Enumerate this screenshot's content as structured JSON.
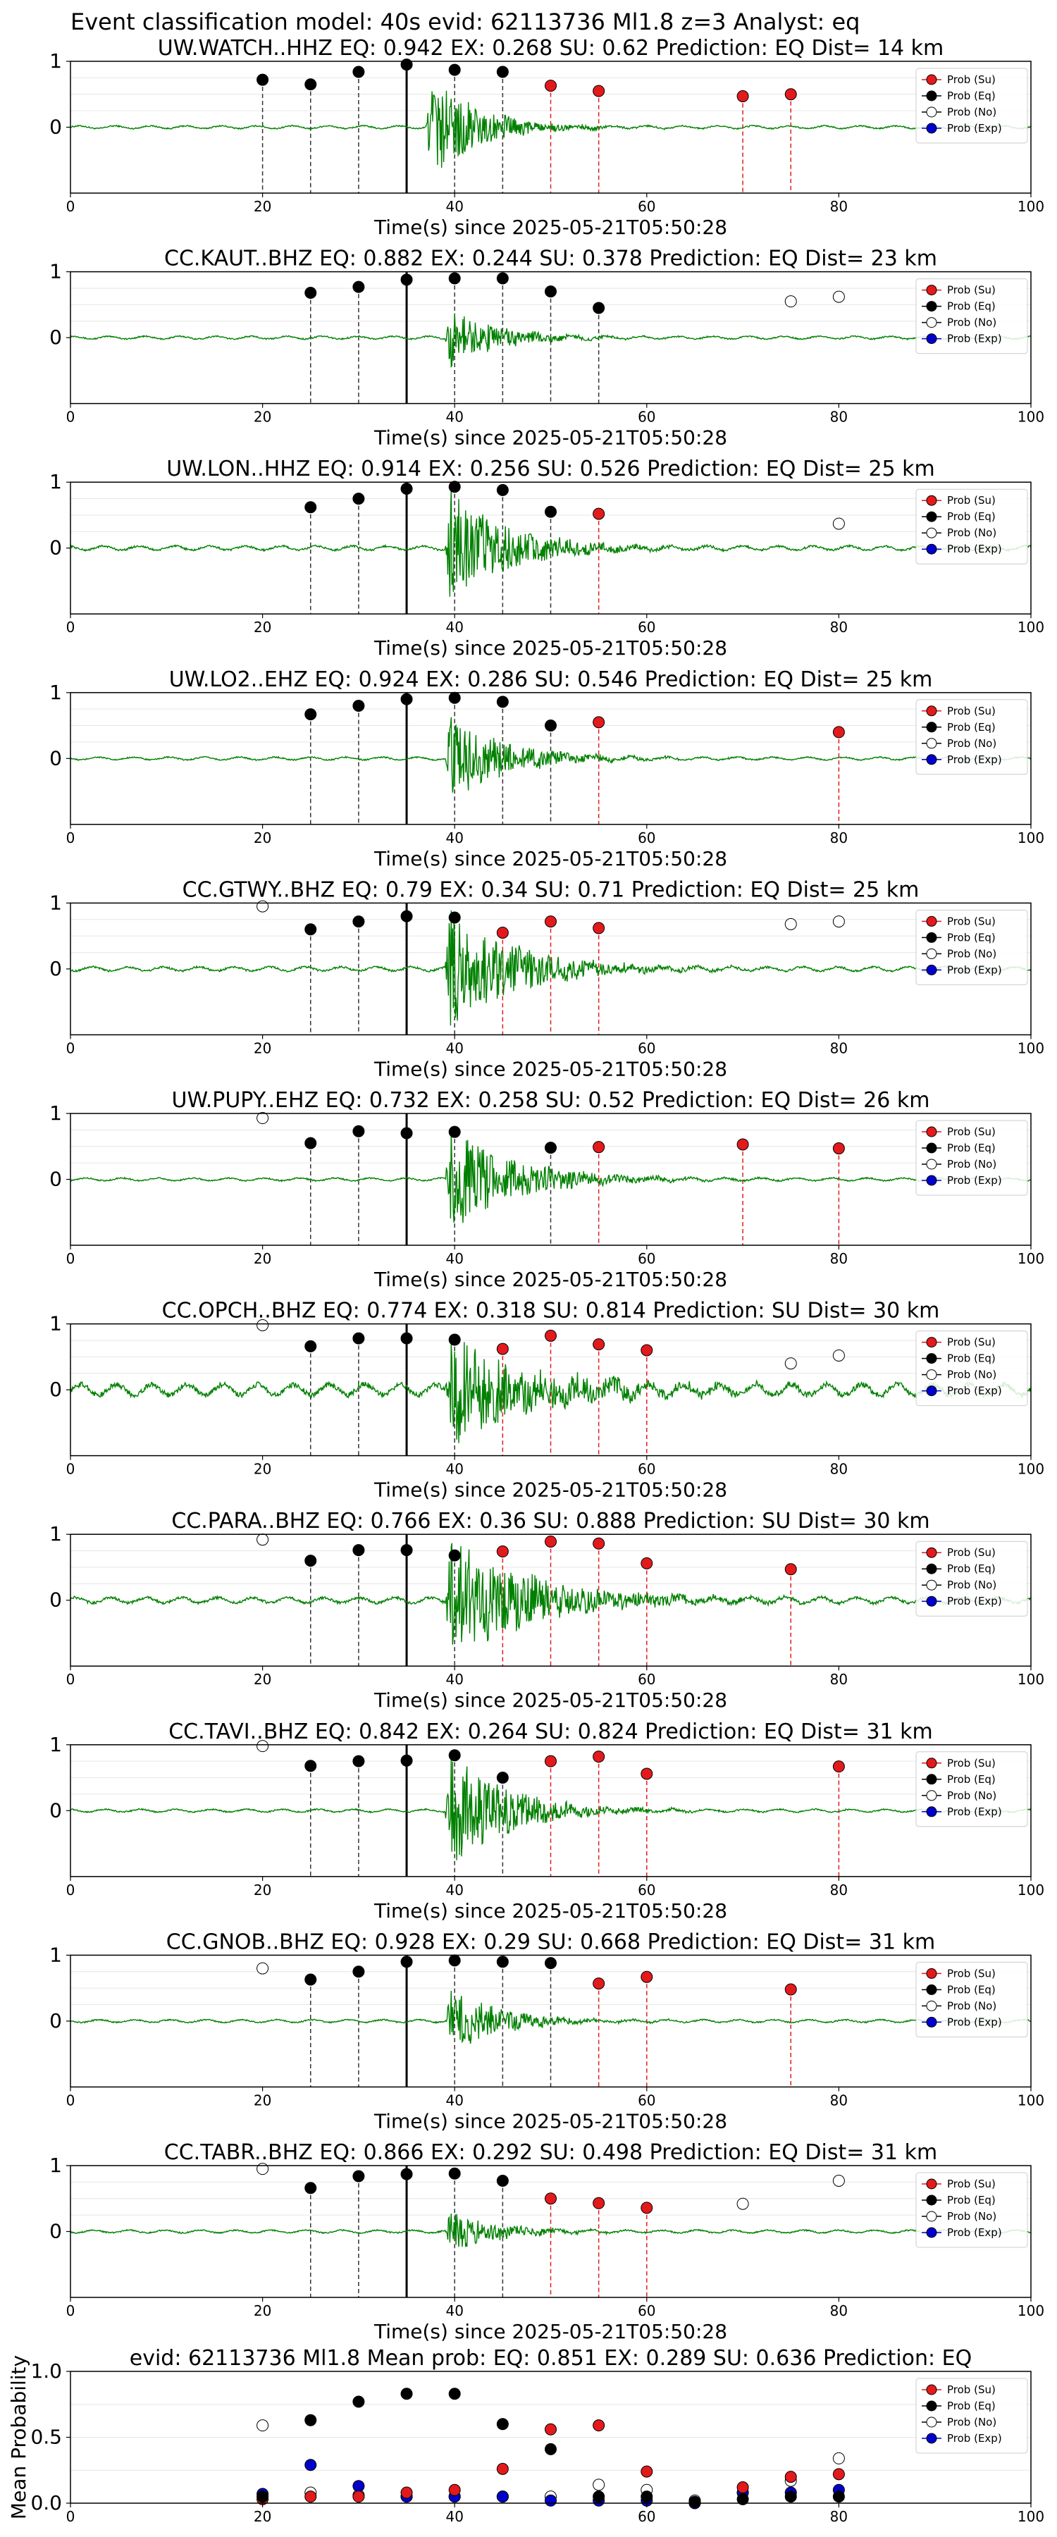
{
  "figure_title": "Event classification model: 40s evid: 62113736 Ml1.8 z=3 Analyst: eq",
  "legend_entries": [
    "Prob (Su)",
    "Prob (Eq)",
    "Prob (No)",
    "Prob (Exp)"
  ],
  "colors": {
    "trace": "#008000",
    "su": "#e31a1c",
    "eq": "#000000",
    "no": "#ffffff",
    "exp": "#0000cc",
    "su_line": "#e31a1c",
    "eq_line": "#333333"
  },
  "chart_data": [
    {
      "type": "line",
      "title": "UW.WATCH..HHZ   EQ: 0.942  EX: 0.268  SU: 0.62   Prediction: EQ    Dist= 14 km",
      "xlabel": "Time(s) since 2025-05-21T05:50:28",
      "xlim": [
        0,
        100
      ],
      "ylim": [
        -1,
        1
      ],
      "xticks": [
        0,
        20,
        40,
        60,
        80,
        100
      ],
      "yticks": [
        0,
        1
      ],
      "pick_time": 35,
      "signal": {
        "start": 37,
        "amp": 0.9,
        "decay": 5,
        "noise": 0.02
      },
      "eq_points": [
        [
          20,
          0.72
        ],
        [
          25,
          0.65
        ],
        [
          30,
          0.84
        ],
        [
          35,
          0.95
        ],
        [
          40,
          0.87
        ],
        [
          45,
          0.84
        ]
      ],
      "su_points": [
        [
          50,
          0.63
        ],
        [
          55,
          0.55
        ],
        [
          70,
          0.47
        ],
        [
          75,
          0.5
        ]
      ],
      "no_points": []
    },
    {
      "type": "line",
      "title": "CC.KAUT..BHZ   EQ: 0.882  EX: 0.244  SU: 0.378   Prediction: EQ    Dist= 23 km",
      "xlabel": "Time(s) since 2025-05-21T05:50:28",
      "xlim": [
        0,
        100
      ],
      "ylim": [
        -1,
        1
      ],
      "xticks": [
        0,
        20,
        40,
        60,
        80,
        100
      ],
      "yticks": [
        0,
        1
      ],
      "pick_time": 35,
      "signal": {
        "start": 39,
        "amp": 0.5,
        "decay": 5,
        "noise": 0.02
      },
      "eq_points": [
        [
          25,
          0.68
        ],
        [
          30,
          0.77
        ],
        [
          35,
          0.88
        ],
        [
          40,
          0.9
        ],
        [
          45,
          0.9
        ],
        [
          50,
          0.7
        ],
        [
          55,
          0.45
        ]
      ],
      "su_points": [],
      "no_points": [
        [
          75,
          0.55
        ],
        [
          80,
          0.62
        ]
      ]
    },
    {
      "type": "line",
      "title": "UW.LON..HHZ   EQ: 0.914  EX: 0.256  SU: 0.526   Prediction: EQ    Dist= 25 km",
      "xlabel": "Time(s) since 2025-05-21T05:50:28",
      "xlim": [
        0,
        100
      ],
      "ylim": [
        -1,
        1
      ],
      "xticks": [
        0,
        20,
        40,
        60,
        80,
        100
      ],
      "yticks": [
        0,
        1
      ],
      "pick_time": 35,
      "signal": {
        "start": 39,
        "amp": 1.0,
        "decay": 6,
        "noise": 0.03
      },
      "eq_points": [
        [
          25,
          0.62
        ],
        [
          30,
          0.75
        ],
        [
          35,
          0.9
        ],
        [
          40,
          0.93
        ],
        [
          45,
          0.88
        ],
        [
          50,
          0.55
        ]
      ],
      "su_points": [
        [
          55,
          0.52
        ]
      ],
      "no_points": [
        [
          80,
          0.37
        ]
      ]
    },
    {
      "type": "line",
      "title": "UW.LO2..EHZ   EQ: 0.924  EX: 0.286  SU: 0.546   Prediction: EQ    Dist= 25 km",
      "xlabel": "Time(s) since 2025-05-21T05:50:28",
      "xlim": [
        0,
        100
      ],
      "ylim": [
        -1,
        1
      ],
      "xticks": [
        0,
        20,
        40,
        60,
        80,
        100
      ],
      "yticks": [
        0,
        1
      ],
      "pick_time": 35,
      "signal": {
        "start": 39,
        "amp": 0.7,
        "decay": 6,
        "noise": 0.02
      },
      "eq_points": [
        [
          25,
          0.67
        ],
        [
          30,
          0.8
        ],
        [
          35,
          0.9
        ],
        [
          40,
          0.92
        ],
        [
          45,
          0.86
        ],
        [
          50,
          0.5
        ]
      ],
      "su_points": [
        [
          55,
          0.55
        ],
        [
          80,
          0.4
        ]
      ],
      "no_points": []
    },
    {
      "type": "line",
      "title": "CC.GTWY..BHZ   EQ: 0.79  EX: 0.34  SU: 0.71   Prediction: EQ    Dist= 25 km",
      "xlabel": "Time(s) since 2025-05-21T05:50:28",
      "xlim": [
        0,
        100
      ],
      "ylim": [
        -1,
        1
      ],
      "xticks": [
        0,
        20,
        40,
        60,
        80,
        100
      ],
      "yticks": [
        0,
        1
      ],
      "pick_time": 35,
      "signal": {
        "start": 39,
        "amp": 1.0,
        "decay": 7,
        "noise": 0.03
      },
      "eq_points": [
        [
          25,
          0.6
        ],
        [
          30,
          0.72
        ],
        [
          35,
          0.8
        ],
        [
          40,
          0.78
        ]
      ],
      "su_points": [
        [
          45,
          0.55
        ],
        [
          50,
          0.72
        ],
        [
          55,
          0.62
        ]
      ],
      "no_points": [
        [
          20,
          0.95
        ],
        [
          75,
          0.68
        ],
        [
          80,
          0.72
        ]
      ]
    },
    {
      "type": "line",
      "title": "UW.PUPY..EHZ   EQ: 0.732  EX: 0.258  SU: 0.52   Prediction: EQ    Dist= 26 km",
      "xlabel": "Time(s) since 2025-05-21T05:50:28",
      "xlim": [
        0,
        100
      ],
      "ylim": [
        -1,
        1
      ],
      "xticks": [
        0,
        20,
        40,
        60,
        80,
        100
      ],
      "yticks": [
        0,
        1
      ],
      "pick_time": 35,
      "signal": {
        "start": 39,
        "amp": 0.85,
        "decay": 7,
        "noise": 0.02
      },
      "eq_points": [
        [
          25,
          0.55
        ],
        [
          30,
          0.73
        ],
        [
          35,
          0.7
        ],
        [
          40,
          0.72
        ],
        [
          50,
          0.48
        ]
      ],
      "su_points": [
        [
          55,
          0.49
        ],
        [
          70,
          0.53
        ],
        [
          80,
          0.47
        ]
      ],
      "no_points": [
        [
          20,
          0.93
        ]
      ]
    },
    {
      "type": "line",
      "title": "CC.OPCH..BHZ   EQ: 0.774  EX: 0.318  SU: 0.814   Prediction: SU    Dist= 30 km",
      "xlabel": "Time(s) since 2025-05-21T05:50:28",
      "xlim": [
        0,
        100
      ],
      "ylim": [
        -1,
        1
      ],
      "xticks": [
        0,
        20,
        40,
        60,
        80,
        100
      ],
      "yticks": [
        0,
        1
      ],
      "pick_time": 35,
      "signal": {
        "start": 39,
        "amp": 0.9,
        "decay": 9,
        "noise": 0.08
      },
      "eq_points": [
        [
          25,
          0.66
        ],
        [
          30,
          0.78
        ],
        [
          35,
          0.78
        ],
        [
          40,
          0.76
        ]
      ],
      "su_points": [
        [
          45,
          0.62
        ],
        [
          50,
          0.82
        ],
        [
          55,
          0.69
        ],
        [
          60,
          0.6
        ]
      ],
      "no_points": [
        [
          20,
          0.98
        ],
        [
          75,
          0.4
        ],
        [
          80,
          0.52
        ]
      ]
    },
    {
      "type": "line",
      "title": "CC.PARA..BHZ   EQ: 0.766  EX: 0.36  SU: 0.888   Prediction: SU    Dist= 30 km",
      "xlabel": "Time(s) since 2025-05-21T05:50:28",
      "xlim": [
        0,
        100
      ],
      "ylim": [
        -1,
        1
      ],
      "xticks": [
        0,
        20,
        40,
        60,
        80,
        100
      ],
      "yticks": [
        0,
        1
      ],
      "pick_time": 35,
      "signal": {
        "start": 39,
        "amp": 1.0,
        "decay": 9,
        "noise": 0.04
      },
      "eq_points": [
        [
          25,
          0.6
        ],
        [
          30,
          0.76
        ],
        [
          35,
          0.76
        ],
        [
          40,
          0.68
        ]
      ],
      "su_points": [
        [
          45,
          0.74
        ],
        [
          50,
          0.89
        ],
        [
          55,
          0.86
        ],
        [
          60,
          0.56
        ],
        [
          75,
          0.47
        ]
      ],
      "no_points": [
        [
          20,
          0.92
        ]
      ]
    },
    {
      "type": "line",
      "title": "CC.TAVI..BHZ   EQ: 0.842  EX: 0.264  SU: 0.824   Prediction: EQ    Dist= 31 km",
      "xlabel": "Time(s) since 2025-05-21T05:50:28",
      "xlim": [
        0,
        100
      ],
      "ylim": [
        -1,
        1
      ],
      "xticks": [
        0,
        20,
        40,
        60,
        80,
        100
      ],
      "yticks": [
        0,
        1
      ],
      "pick_time": 35,
      "signal": {
        "start": 39,
        "amp": 1.0,
        "decay": 6,
        "noise": 0.02
      },
      "eq_points": [
        [
          25,
          0.68
        ],
        [
          30,
          0.75
        ],
        [
          35,
          0.76
        ],
        [
          40,
          0.84
        ],
        [
          45,
          0.5
        ]
      ],
      "su_points": [
        [
          50,
          0.75
        ],
        [
          55,
          0.82
        ],
        [
          60,
          0.56
        ],
        [
          80,
          0.67
        ]
      ],
      "no_points": [
        [
          20,
          0.98
        ]
      ]
    },
    {
      "type": "line",
      "title": "CC.GNOB..BHZ   EQ: 0.928  EX: 0.29  SU: 0.668   Prediction: EQ    Dist= 31 km",
      "xlabel": "Time(s) since 2025-05-21T05:50:28",
      "xlim": [
        0,
        100
      ],
      "ylim": [
        -1,
        1
      ],
      "xticks": [
        0,
        20,
        40,
        60,
        80,
        100
      ],
      "yticks": [
        0,
        1
      ],
      "pick_time": 35,
      "signal": {
        "start": 39,
        "amp": 0.6,
        "decay": 5,
        "noise": 0.02
      },
      "eq_points": [
        [
          25,
          0.63
        ],
        [
          30,
          0.75
        ],
        [
          35,
          0.9
        ],
        [
          40,
          0.92
        ],
        [
          45,
          0.9
        ],
        [
          50,
          0.88
        ]
      ],
      "su_points": [
        [
          55,
          0.57
        ],
        [
          60,
          0.67
        ],
        [
          75,
          0.48
        ]
      ],
      "no_points": [
        [
          20,
          0.8
        ]
      ]
    },
    {
      "type": "line",
      "title": "CC.TABR..BHZ   EQ: 0.866  EX: 0.292  SU: 0.498   Prediction: EQ    Dist= 31 km",
      "xlabel": "Time(s) since 2025-05-21T05:50:28",
      "xlim": [
        0,
        100
      ],
      "ylim": [
        -1,
        1
      ],
      "xticks": [
        0,
        20,
        40,
        60,
        80,
        100
      ],
      "yticks": [
        0,
        1
      ],
      "pick_time": 35,
      "signal": {
        "start": 39,
        "amp": 0.35,
        "decay": 5,
        "noise": 0.02
      },
      "eq_points": [
        [
          25,
          0.66
        ],
        [
          30,
          0.84
        ],
        [
          35,
          0.87
        ],
        [
          40,
          0.88
        ],
        [
          45,
          0.77
        ]
      ],
      "su_points": [
        [
          50,
          0.5
        ],
        [
          55,
          0.43
        ],
        [
          60,
          0.36
        ]
      ],
      "no_points": [
        [
          20,
          0.95
        ],
        [
          70,
          0.42
        ],
        [
          80,
          0.77
        ]
      ]
    },
    {
      "type": "scatter",
      "title": "evid: 62113736  Ml1.8   Mean prob:   EQ: 0.851  EX: 0.289  SU: 0.636   Prediction: EQ",
      "xlabel": "",
      "ylabel": "Mean Probability",
      "xlim": [
        0,
        100
      ],
      "ylim": [
        0,
        1
      ],
      "xticks": [
        0,
        20,
        40,
        60,
        80,
        100
      ],
      "yticks": [
        0.0,
        0.5,
        1.0
      ],
      "x": [
        20,
        25,
        30,
        35,
        40,
        45,
        50,
        55,
        60,
        65,
        70,
        75,
        80
      ],
      "series": [
        {
          "name": "Prob (Su)",
          "values": [
            0.03,
            0.05,
            0.05,
            0.08,
            0.1,
            0.26,
            0.56,
            0.59,
            0.24,
            0.01,
            0.12,
            0.2,
            0.22
          ]
        },
        {
          "name": "Prob (Eq)",
          "values": [
            0.05,
            0.63,
            0.77,
            0.83,
            0.83,
            0.6,
            0.41,
            0.05,
            0.05,
            0.01,
            0.03,
            0.05,
            0.05
          ]
        },
        {
          "name": "Prob (No)",
          "values": [
            0.59,
            0.08,
            0.06,
            0.05,
            0.05,
            0.05,
            0.05,
            0.14,
            0.1,
            0.02,
            0.08,
            0.17,
            0.34
          ]
        },
        {
          "name": "Prob (Exp)",
          "values": [
            0.07,
            0.29,
            0.13,
            0.05,
            0.05,
            0.05,
            0.02,
            0.02,
            0.02,
            0.0,
            0.08,
            0.08,
            0.1
          ]
        }
      ]
    }
  ]
}
